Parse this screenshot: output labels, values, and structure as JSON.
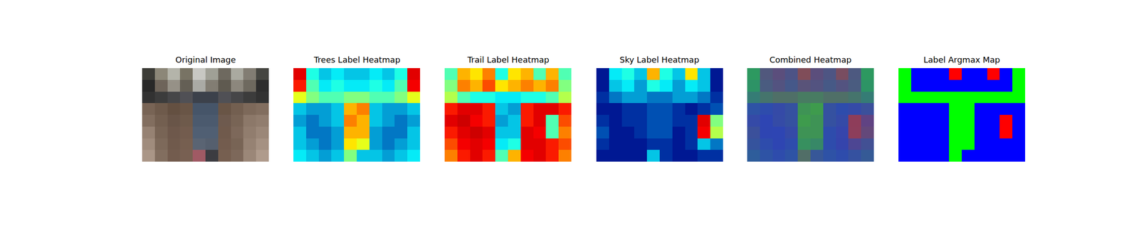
{
  "chart_data": [
    {
      "type": "image",
      "title": "Original Image",
      "tick_labels": false,
      "pixels": [
        [
          [
            60,
            60,
            55
          ],
          [
            140,
            135,
            120
          ],
          [
            180,
            180,
            170
          ],
          [
            120,
            115,
            100
          ],
          [
            200,
            200,
            195
          ],
          [
            160,
            160,
            150
          ],
          [
            110,
            105,
            95
          ],
          [
            170,
            170,
            160
          ],
          [
            130,
            125,
            115
          ],
          [
            70,
            70,
            65
          ]
        ],
        [
          [
            40,
            40,
            40
          ],
          [
            110,
            100,
            90
          ],
          [
            150,
            145,
            135
          ],
          [
            100,
            95,
            85
          ],
          [
            170,
            170,
            165
          ],
          [
            130,
            125,
            115
          ],
          [
            95,
            90,
            80
          ],
          [
            140,
            135,
            125
          ],
          [
            110,
            105,
            95
          ],
          [
            45,
            45,
            45
          ]
        ],
        [
          [
            50,
            50,
            50
          ],
          [
            60,
            60,
            60
          ],
          [
            70,
            70,
            72
          ],
          [
            80,
            80,
            85
          ],
          [
            60,
            65,
            75
          ],
          [
            60,
            65,
            75
          ],
          [
            80,
            80,
            85
          ],
          [
            70,
            70,
            72
          ],
          [
            60,
            60,
            60
          ],
          [
            50,
            50,
            50
          ]
        ],
        [
          [
            120,
            100,
            85
          ],
          [
            110,
            90,
            75
          ],
          [
            100,
            80,
            65
          ],
          [
            105,
            85,
            70
          ],
          [
            70,
            85,
            105
          ],
          [
            70,
            85,
            105
          ],
          [
            105,
            85,
            70
          ],
          [
            115,
            95,
            80
          ],
          [
            125,
            105,
            90
          ],
          [
            130,
            110,
            95
          ]
        ],
        [
          [
            130,
            110,
            95
          ],
          [
            115,
            95,
            80
          ],
          [
            105,
            85,
            72
          ],
          [
            110,
            90,
            75
          ],
          [
            75,
            90,
            110
          ],
          [
            75,
            90,
            110
          ],
          [
            110,
            90,
            78
          ],
          [
            120,
            100,
            85
          ],
          [
            140,
            120,
            105
          ],
          [
            145,
            125,
            110
          ]
        ],
        [
          [
            150,
            130,
            115
          ],
          [
            120,
            100,
            85
          ],
          [
            110,
            88,
            75
          ],
          [
            115,
            92,
            78
          ],
          [
            80,
            95,
            115
          ],
          [
            80,
            95,
            115
          ],
          [
            112,
            90,
            76
          ],
          [
            125,
            104,
            90
          ],
          [
            145,
            125,
            110
          ],
          [
            155,
            135,
            120
          ]
        ],
        [
          [
            160,
            140,
            125
          ],
          [
            125,
            105,
            90
          ],
          [
            112,
            90,
            76
          ],
          [
            118,
            95,
            80
          ],
          [
            90,
            100,
            115
          ],
          [
            85,
            95,
            110
          ],
          [
            115,
            92,
            78
          ],
          [
            120,
            100,
            85
          ],
          [
            150,
            130,
            115
          ],
          [
            165,
            145,
            130
          ]
        ],
        [
          [
            170,
            150,
            135
          ],
          [
            130,
            110,
            95
          ],
          [
            115,
            92,
            78
          ],
          [
            120,
            96,
            82
          ],
          [
            160,
            90,
            100
          ],
          [
            60,
            60,
            65
          ],
          [
            118,
            95,
            80
          ],
          [
            125,
            104,
            90
          ],
          [
            155,
            135,
            120
          ],
          [
            175,
            155,
            140
          ]
        ]
      ]
    },
    {
      "type": "heatmap",
      "title": "Trees Label Heatmap",
      "tick_labels": false,
      "zlim": [
        0,
        1
      ],
      "z": [
        [
          0.9,
          0.4,
          0.3,
          0.35,
          0.3,
          0.3,
          0.35,
          0.3,
          0.4,
          0.9
        ],
        [
          0.85,
          0.45,
          0.35,
          0.4,
          0.35,
          0.35,
          0.4,
          0.35,
          0.45,
          0.88
        ],
        [
          0.6,
          0.5,
          0.45,
          0.45,
          0.5,
          0.5,
          0.45,
          0.45,
          0.5,
          0.6
        ],
        [
          0.3,
          0.25,
          0.25,
          0.3,
          0.7,
          0.75,
          0.3,
          0.25,
          0.25,
          0.3
        ],
        [
          0.25,
          0.2,
          0.25,
          0.3,
          0.75,
          0.7,
          0.3,
          0.25,
          0.2,
          0.25
        ],
        [
          0.3,
          0.2,
          0.2,
          0.25,
          0.7,
          0.7,
          0.25,
          0.2,
          0.2,
          0.3
        ],
        [
          0.3,
          0.25,
          0.2,
          0.25,
          0.65,
          0.6,
          0.25,
          0.2,
          0.25,
          0.3
        ],
        [
          0.35,
          0.3,
          0.25,
          0.3,
          0.5,
          0.3,
          0.3,
          0.25,
          0.3,
          0.35
        ]
      ]
    },
    {
      "type": "heatmap",
      "title": "Trail Label Heatmap",
      "tick_labels": false,
      "zlim": [
        0,
        1
      ],
      "z": [
        [
          0.45,
          0.7,
          0.65,
          0.75,
          0.4,
          0.65,
          0.7,
          0.45,
          0.7,
          0.45
        ],
        [
          0.5,
          0.75,
          0.7,
          0.8,
          0.65,
          0.7,
          0.75,
          0.7,
          0.75,
          0.5
        ],
        [
          0.55,
          0.45,
          0.4,
          0.4,
          0.35,
          0.35,
          0.4,
          0.4,
          0.45,
          0.55
        ],
        [
          0.85,
          0.9,
          0.9,
          0.85,
          0.3,
          0.25,
          0.85,
          0.9,
          0.9,
          0.85
        ],
        [
          0.9,
          0.92,
          0.88,
          0.85,
          0.25,
          0.3,
          0.85,
          0.9,
          0.45,
          0.8
        ],
        [
          0.85,
          0.9,
          0.92,
          0.9,
          0.3,
          0.3,
          0.9,
          0.88,
          0.45,
          0.75
        ],
        [
          0.8,
          0.88,
          0.9,
          0.88,
          0.35,
          0.4,
          0.9,
          0.9,
          0.85,
          0.8
        ],
        [
          0.75,
          0.85,
          0.9,
          0.85,
          0.45,
          0.7,
          0.88,
          0.9,
          0.85,
          0.75
        ]
      ]
    },
    {
      "type": "heatmap",
      "title": "Sky Label Heatmap",
      "tick_labels": false,
      "zlim": [
        0,
        1
      ],
      "z": [
        [
          0.05,
          0.35,
          0.4,
          0.3,
          0.7,
          0.4,
          0.3,
          0.65,
          0.3,
          0.05
        ],
        [
          0.05,
          0.3,
          0.35,
          0.25,
          0.4,
          0.35,
          0.25,
          0.35,
          0.3,
          0.05
        ],
        [
          0.1,
          0.2,
          0.25,
          0.25,
          0.2,
          0.2,
          0.25,
          0.25,
          0.2,
          0.1
        ],
        [
          0.05,
          0.05,
          0.1,
          0.1,
          0.15,
          0.15,
          0.1,
          0.05,
          0.1,
          0.15
        ],
        [
          0.1,
          0.05,
          0.1,
          0.1,
          0.15,
          0.15,
          0.1,
          0.1,
          0.9,
          0.5
        ],
        [
          0.15,
          0.05,
          0.05,
          0.1,
          0.15,
          0.15,
          0.05,
          0.1,
          0.88,
          0.55
        ],
        [
          0.1,
          0.05,
          0.05,
          0.05,
          0.1,
          0.1,
          0.05,
          0.1,
          0.3,
          0.2
        ],
        [
          0.05,
          0.05,
          0.05,
          0.05,
          0.3,
          0.1,
          0.05,
          0.05,
          0.1,
          0.1
        ]
      ]
    },
    {
      "type": "combined",
      "title": "Combined Heatmap",
      "tick_labels": false,
      "colors": [
        "#00ff00",
        "#0000ff",
        "#ff0000"
      ]
    },
    {
      "type": "argmax",
      "title": "Label Argmax Map",
      "tick_labels": false,
      "colors": [
        "#00ff00",
        "#0000ff",
        "#ff0000"
      ]
    }
  ]
}
